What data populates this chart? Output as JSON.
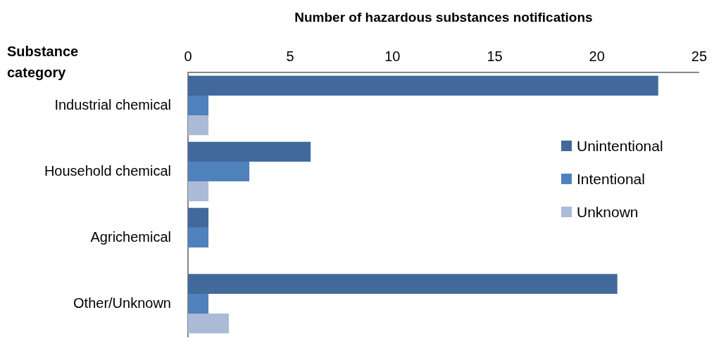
{
  "chart_data": {
    "type": "bar",
    "orientation": "horizontal",
    "xlabel": "Number of hazardous substances notifications",
    "ylabel": "Substance category",
    "categories": [
      "Industrial chemical",
      "Household chemical",
      "Agrichemical",
      "Other/Unknown"
    ],
    "series": [
      {
        "name": "Unintentional",
        "color": "#416a9b",
        "values": [
          23,
          6,
          1,
          21
        ]
      },
      {
        "name": "Intentional",
        "color": "#4f81bd",
        "values": [
          1,
          3,
          1,
          1
        ]
      },
      {
        "name": "Unknown",
        "color": "#aabad7",
        "values": [
          1,
          1,
          null,
          2
        ]
      }
    ],
    "xlim": [
      0,
      25
    ],
    "xticks": [
      0,
      5,
      10,
      15,
      20,
      25
    ],
    "grid": false,
    "legend": "right"
  }
}
